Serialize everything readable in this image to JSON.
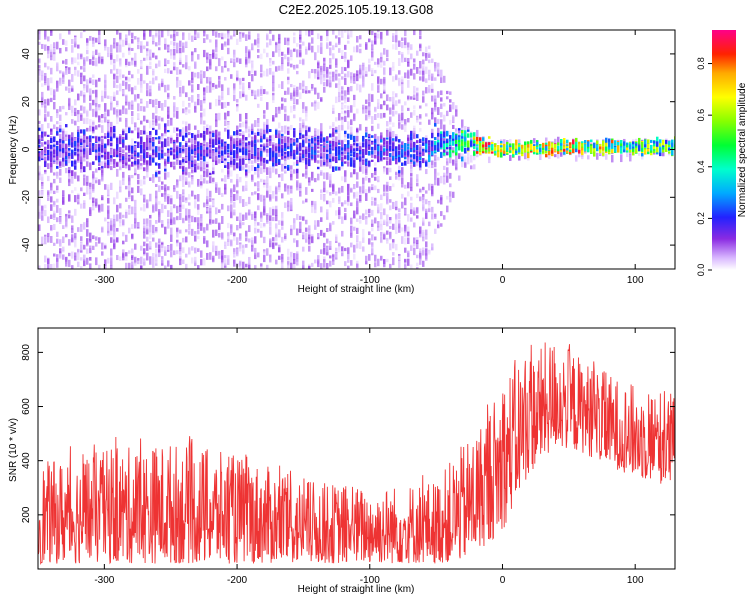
{
  "chart_data": [
    {
      "type": "heatmap",
      "title": "C2E2.2025.105.19.13.G08",
      "xlabel": "Height of straight line (km)",
      "ylabel": "Frequency (Hz)",
      "xlim": [
        -350,
        130
      ],
      "ylim": [
        -50,
        50
      ],
      "xticks": [
        -300,
        -200,
        -100,
        0,
        100
      ],
      "yticks": [
        -40,
        -20,
        0,
        20,
        40
      ],
      "colorbar": {
        "label": "Normalized spectral amplitude",
        "range": [
          0.0,
          0.93
        ],
        "ticks": [
          0.0,
          0.2,
          0.4,
          0.6,
          0.8
        ],
        "colormap": "rainbow"
      },
      "description_points": [
        {
          "x": -350,
          "center_freq": 0,
          "spread_hz": 50,
          "core_width_hz": 10,
          "amplitude": 0.2
        },
        {
          "x": -200,
          "center_freq": 0,
          "spread_hz": 50,
          "core_width_hz": 10,
          "amplitude": 0.2
        },
        {
          "x": -60,
          "center_freq": 0,
          "spread_hz": 50,
          "core_width_hz": 8,
          "amplitude": 0.25
        },
        {
          "x": -30,
          "center_freq": 4,
          "spread_hz": 10,
          "core_width_hz": 6,
          "amplitude": 0.5
        },
        {
          "x": -15,
          "center_freq": 1,
          "spread_hz": 5,
          "core_width_hz": 4,
          "amplitude": 0.85
        },
        {
          "x": 0,
          "center_freq": 0,
          "spread_hz": 4,
          "core_width_hz": 3,
          "amplitude": 0.7
        },
        {
          "x": 50,
          "center_freq": 1,
          "spread_hz": 4,
          "core_width_hz": 3,
          "amplitude": 0.8
        },
        {
          "x": 130,
          "center_freq": 1,
          "spread_hz": 4,
          "core_width_hz": 3,
          "amplitude": 0.55
        }
      ]
    },
    {
      "type": "line",
      "xlabel": "Height of straight line (km)",
      "ylabel": "SNR (10 * v/v)",
      "xlim": [
        -350,
        130
      ],
      "ylim": [
        0,
        890
      ],
      "xticks": [
        -300,
        -200,
        -100,
        0,
        100
      ],
      "yticks": [
        200,
        400,
        600,
        800
      ],
      "color": "#ee3333",
      "envelope": {
        "x": [
          -350,
          -300,
          -250,
          -200,
          -150,
          -100,
          -50,
          -30,
          -20,
          -10,
          0,
          10,
          20,
          40,
          60,
          80,
          100,
          130
        ],
        "low": [
          20,
          20,
          20,
          20,
          20,
          20,
          20,
          30,
          60,
          100,
          140,
          250,
          350,
          450,
          430,
          380,
          340,
          300
        ],
        "high": [
          390,
          440,
          470,
          420,
          330,
          300,
          330,
          460,
          520,
          600,
          700,
          780,
          800,
          860,
          780,
          720,
          680,
          660
        ]
      }
    }
  ]
}
